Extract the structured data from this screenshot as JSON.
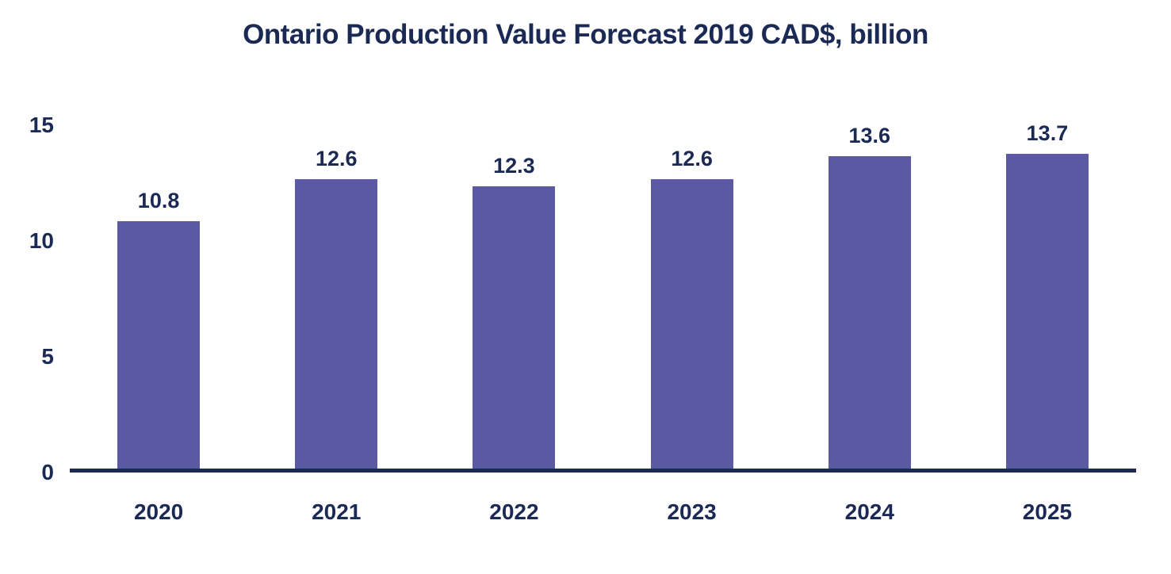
{
  "chart_data": {
    "type": "bar",
    "title": "Ontario Production Value Forecast 2019 CAD$, billion",
    "categories": [
      "2020",
      "2021",
      "2022",
      "2023",
      "2024",
      "2025"
    ],
    "values": [
      10.8,
      12.6,
      12.3,
      12.6,
      13.6,
      13.7
    ],
    "value_labels": [
      "10.8",
      "12.6",
      "12.3",
      "12.6",
      "13.6",
      "13.7"
    ],
    "xlabel": "",
    "ylabel": "",
    "yticks": [
      0,
      5,
      10,
      15
    ],
    "ylim": [
      0,
      15
    ],
    "grid": false,
    "legend_position": "none",
    "bar_color": "#5B59A4",
    "text_color": "#1B2A55",
    "axis_color": "#1B2A55"
  }
}
